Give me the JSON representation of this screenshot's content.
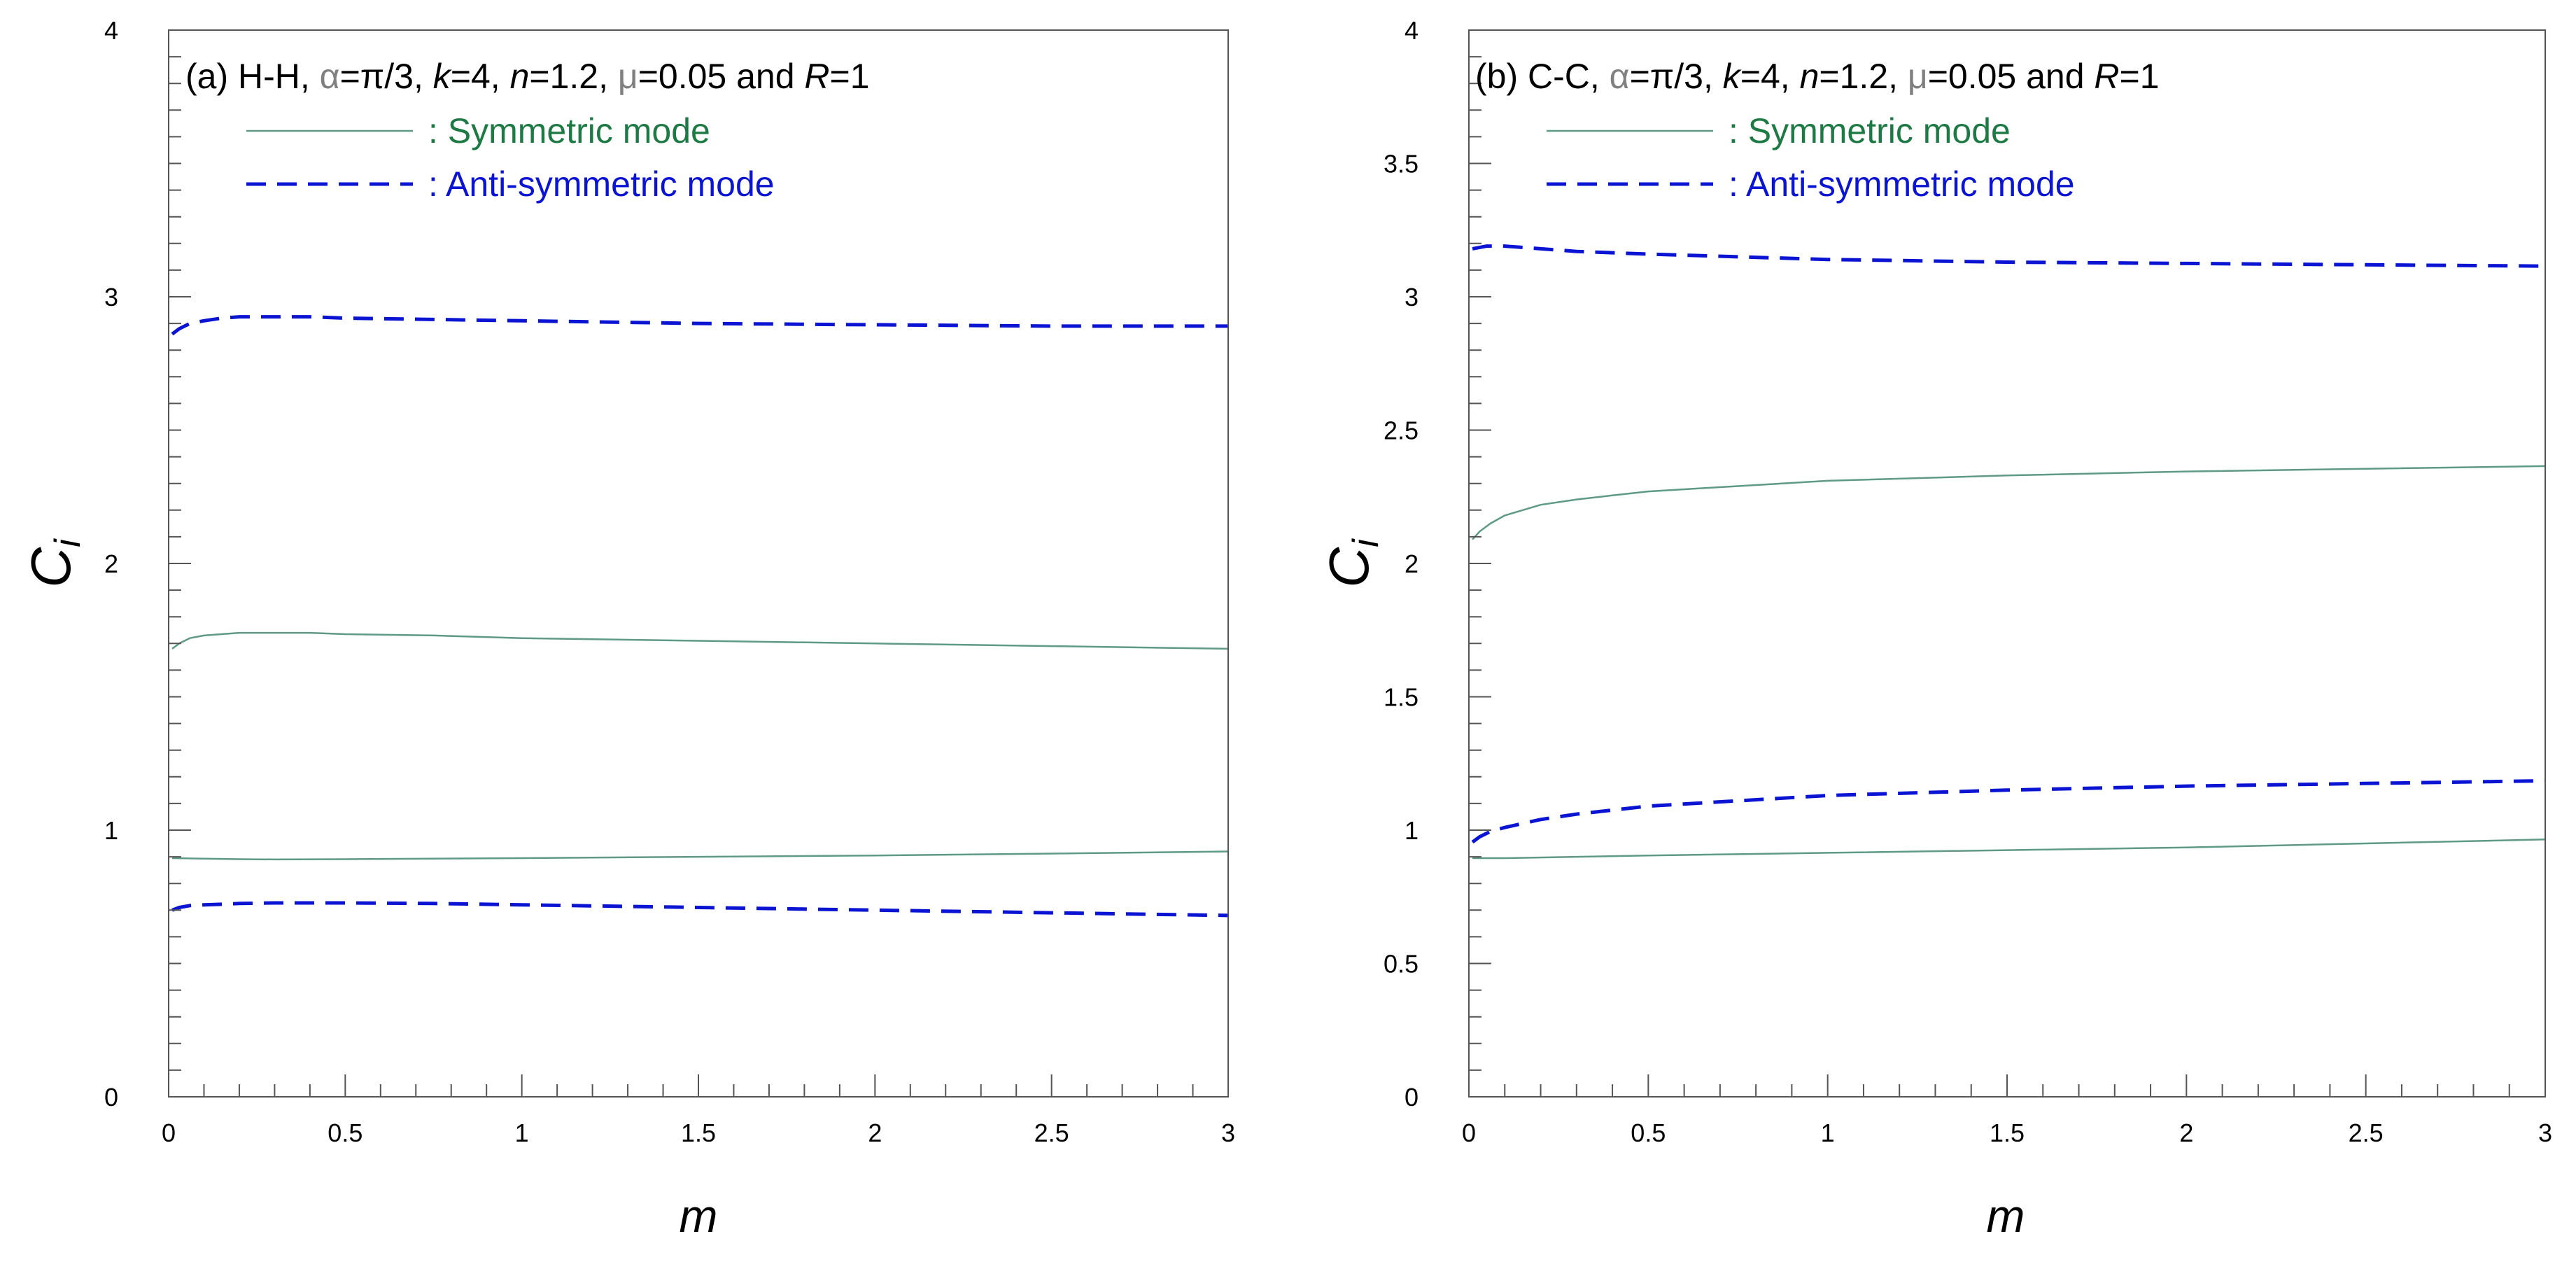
{
  "colors": {
    "symmetric": "#5f9a86",
    "symmetric_legend_text": "#1d7a44",
    "antisymmetric": "#0a14d2",
    "greek": "#808080"
  },
  "chart_data": [
    {
      "type": "line",
      "panel_label": "(a) H-H,",
      "title_parts": {
        "alpha_sym": "α",
        "alpha_val": "=π/3, ",
        "k_sym": "k",
        "k_val": "=4, ",
        "n_sym": "n",
        "n_val": "=1.2, ",
        "mu_sym": "μ",
        "mu_val": "=0.05 and ",
        "R_sym": "R",
        "R_val": "=1"
      },
      "legend": {
        "symmetric": ": Symmetric mode",
        "antisymmetric": ": Anti-symmetric mode"
      },
      "xlabel": "m",
      "ylabel_main": "C",
      "ylabel_sub": "i",
      "xlim": [
        0,
        3
      ],
      "ylim": [
        0,
        4
      ],
      "xticks": [
        {
          "v": 0,
          "label": "0"
        },
        {
          "v": 0.5,
          "label": "0.5"
        },
        {
          "v": 1,
          "label": "1"
        },
        {
          "v": 1.5,
          "label": "1.5"
        },
        {
          "v": 2,
          "label": "2"
        },
        {
          "v": 2.5,
          "label": "2.5"
        },
        {
          "v": 3,
          "label": "3"
        }
      ],
      "yticks": [
        {
          "v": 0,
          "label": "0"
        },
        {
          "v": 1,
          "label": "1"
        },
        {
          "v": 2,
          "label": "2"
        },
        {
          "v": 3,
          "label": "3"
        },
        {
          "v": 4,
          "label": "4"
        }
      ],
      "x_minor_step": 0.1,
      "y_minor_step": 0.1,
      "series": [
        {
          "name": "Anti-symmetric mode (upper)",
          "style": "antisymmetric",
          "x": [
            0.01,
            0.03,
            0.06,
            0.1,
            0.15,
            0.2,
            0.3,
            0.4,
            0.5,
            0.75,
            1.0,
            1.5,
            2.0,
            2.5,
            3.0
          ],
          "y": [
            2.86,
            2.88,
            2.9,
            2.91,
            2.92,
            2.925,
            2.925,
            2.925,
            2.92,
            2.915,
            2.91,
            2.9,
            2.895,
            2.89,
            2.89
          ]
        },
        {
          "name": "Symmetric mode (upper)",
          "style": "symmetric",
          "x": [
            0.01,
            0.03,
            0.06,
            0.1,
            0.15,
            0.2,
            0.3,
            0.4,
            0.5,
            0.75,
            1.0,
            1.5,
            2.0,
            2.5,
            3.0
          ],
          "y": [
            1.68,
            1.7,
            1.72,
            1.73,
            1.735,
            1.74,
            1.74,
            1.74,
            1.735,
            1.73,
            1.72,
            1.71,
            1.7,
            1.69,
            1.68
          ]
        },
        {
          "name": "Symmetric mode (lower)",
          "style": "symmetric",
          "x": [
            0.01,
            0.1,
            0.2,
            0.3,
            0.5,
            1.0,
            1.5,
            2.0,
            2.5,
            3.0
          ],
          "y": [
            0.895,
            0.893,
            0.891,
            0.89,
            0.891,
            0.895,
            0.9,
            0.905,
            0.912,
            0.92
          ]
        },
        {
          "name": "Anti-symmetric mode (lower)",
          "style": "antisymmetric",
          "x": [
            0.01,
            0.03,
            0.06,
            0.1,
            0.15,
            0.2,
            0.3,
            0.5,
            0.75,
            1.0,
            1.5,
            2.0,
            2.5,
            3.0
          ],
          "y": [
            0.7,
            0.71,
            0.717,
            0.72,
            0.722,
            0.725,
            0.727,
            0.727,
            0.725,
            0.72,
            0.71,
            0.7,
            0.69,
            0.68
          ]
        }
      ]
    },
    {
      "type": "line",
      "panel_label": "(b) C-C,",
      "title_parts": {
        "alpha_sym": "α",
        "alpha_val": "=π/3, ",
        "k_sym": "k",
        "k_val": "=4, ",
        "n_sym": "n",
        "n_val": "=1.2, ",
        "mu_sym": "μ",
        "mu_val": "=0.05 and ",
        "R_sym": "R",
        "R_val": "=1"
      },
      "legend": {
        "symmetric": ": Symmetric mode",
        "antisymmetric": ": Anti-symmetric mode"
      },
      "xlabel": "m",
      "ylabel_main": "C",
      "ylabel_sub": "i",
      "xlim": [
        0,
        3
      ],
      "ylim": [
        0,
        4
      ],
      "xticks": [
        {
          "v": 0,
          "label": "0"
        },
        {
          "v": 0.5,
          "label": "0.5"
        },
        {
          "v": 1,
          "label": "1"
        },
        {
          "v": 1.5,
          "label": "1.5"
        },
        {
          "v": 2,
          "label": "2"
        },
        {
          "v": 2.5,
          "label": "2.5"
        },
        {
          "v": 3,
          "label": "3"
        }
      ],
      "yticks": [
        {
          "v": 0,
          "label": "0"
        },
        {
          "v": 0.5,
          "label": "0.5"
        },
        {
          "v": 1,
          "label": "1"
        },
        {
          "v": 1.5,
          "label": "1.5"
        },
        {
          "v": 2,
          "label": "2"
        },
        {
          "v": 2.5,
          "label": "2.5"
        },
        {
          "v": 3,
          "label": "3"
        },
        {
          "v": 3.5,
          "label": "3.5"
        },
        {
          "v": 4,
          "label": "4"
        }
      ],
      "x_minor_step": 0.1,
      "y_minor_step": 0.1,
      "series": [
        {
          "name": "Anti-symmetric mode (upper)",
          "style": "antisymmetric",
          "x": [
            0.01,
            0.05,
            0.1,
            0.2,
            0.3,
            0.5,
            0.75,
            1.0,
            1.5,
            2.0,
            2.5,
            3.0
          ],
          "y": [
            3.18,
            3.19,
            3.19,
            3.18,
            3.17,
            3.16,
            3.15,
            3.14,
            3.13,
            3.125,
            3.12,
            3.115
          ]
        },
        {
          "name": "Symmetric mode (upper)",
          "style": "symmetric",
          "x": [
            0.01,
            0.03,
            0.06,
            0.1,
            0.15,
            0.2,
            0.3,
            0.4,
            0.5,
            0.75,
            1.0,
            1.5,
            2.0,
            2.5,
            3.0
          ],
          "y": [
            2.09,
            2.12,
            2.15,
            2.18,
            2.2,
            2.22,
            2.24,
            2.255,
            2.27,
            2.29,
            2.31,
            2.33,
            2.345,
            2.355,
            2.365
          ]
        },
        {
          "name": "Anti-symmetric mode (lower)",
          "style": "antisymmetric",
          "x": [
            0.01,
            0.03,
            0.06,
            0.1,
            0.15,
            0.2,
            0.3,
            0.4,
            0.5,
            0.75,
            1.0,
            1.5,
            2.0,
            2.5,
            3.0
          ],
          "y": [
            0.955,
            0.975,
            0.995,
            1.01,
            1.025,
            1.04,
            1.06,
            1.075,
            1.09,
            1.11,
            1.13,
            1.15,
            1.165,
            1.175,
            1.185
          ]
        },
        {
          "name": "Symmetric mode (lower)",
          "style": "symmetric",
          "x": [
            0.01,
            0.1,
            0.3,
            0.5,
            1.0,
            1.5,
            2.0,
            2.5,
            3.0
          ],
          "y": [
            0.895,
            0.895,
            0.9,
            0.905,
            0.915,
            0.925,
            0.935,
            0.95,
            0.965
          ]
        }
      ]
    }
  ]
}
